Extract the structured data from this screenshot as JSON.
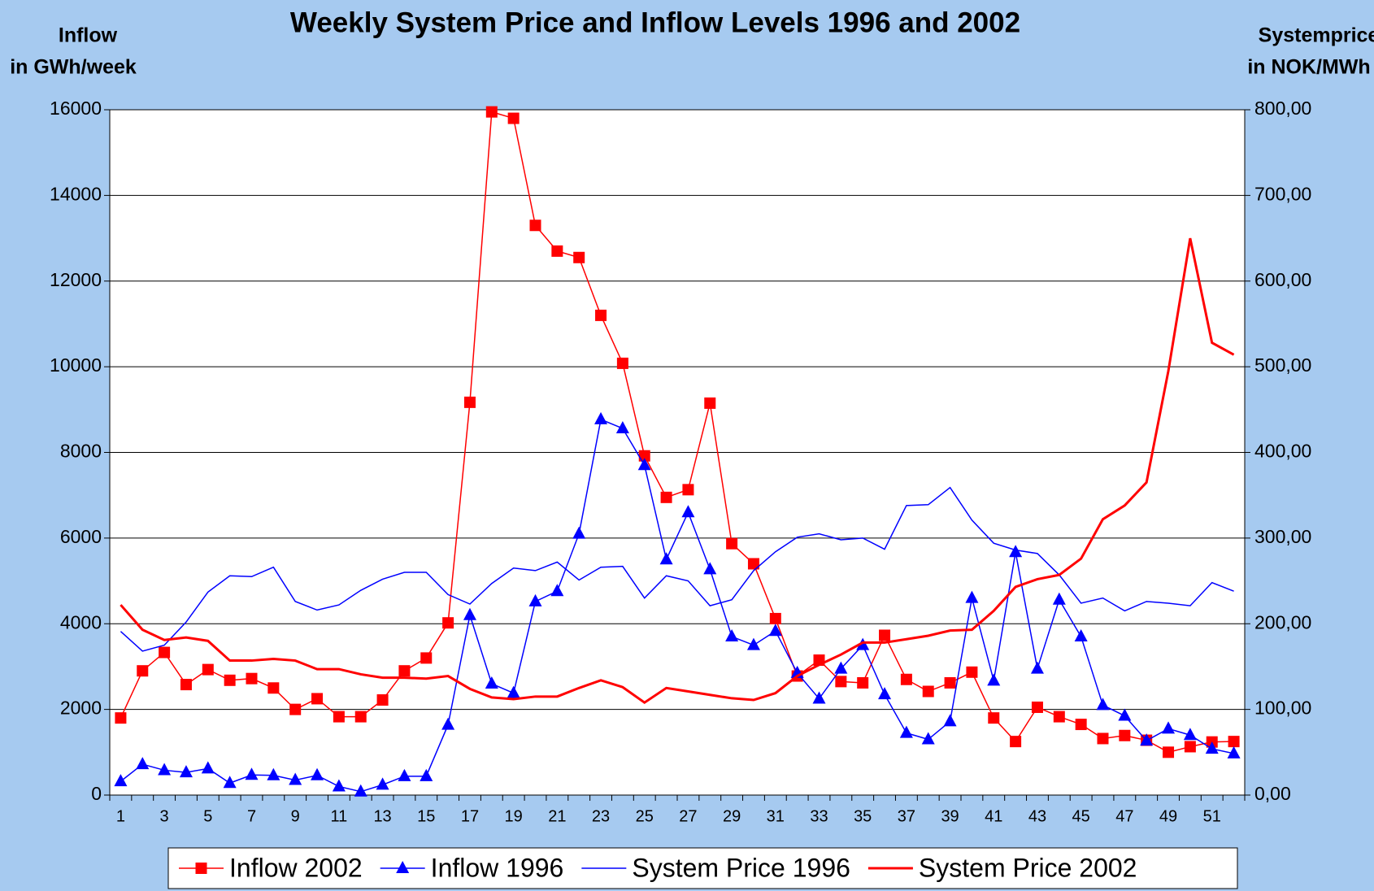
{
  "chart_data": {
    "type": "line",
    "title": "Weekly System Price and Inflow Levels 1996 and 2002",
    "ylabel": [
      "Inflow",
      "in GWh/week"
    ],
    "y2label": [
      "Systemprice",
      "in NOK/MWh"
    ],
    "categories": [
      1,
      null,
      3,
      null,
      5,
      null,
      7,
      null,
      9,
      null,
      11,
      null,
      13,
      null,
      15,
      null,
      17,
      null,
      19,
      null,
      21,
      null,
      23,
      null,
      25,
      null,
      27,
      null,
      29,
      null,
      31,
      null,
      33,
      null,
      35,
      null,
      37,
      null,
      39,
      null,
      41,
      null,
      43,
      null,
      45,
      null,
      47,
      null,
      49,
      null,
      51,
      null
    ],
    "ylim": [
      0,
      16000
    ],
    "yticks": [
      0,
      2000,
      4000,
      6000,
      8000,
      10000,
      12000,
      14000,
      16000
    ],
    "y2lim": [
      0,
      800
    ],
    "y2ticks": [
      {
        "value": 0,
        "label": "0,00"
      },
      {
        "value": 100,
        "label": "100,00"
      },
      {
        "value": 200,
        "label": "200,00"
      },
      {
        "value": 300,
        "label": "300,00"
      },
      {
        "value": 400,
        "label": "400,00"
      },
      {
        "value": 500,
        "label": "500,00"
      },
      {
        "value": 600,
        "label": "600,00"
      },
      {
        "value": 700,
        "label": "700,00"
      },
      {
        "value": 800,
        "label": "800,00"
      }
    ],
    "grid": true,
    "legend": "bottom",
    "series": [
      {
        "name": "Inflow 2002",
        "color": "#ff0000",
        "marker": "square",
        "line_width": 1.5,
        "values": [
          1800,
          2900,
          3330,
          2580,
          2930,
          2680,
          2720,
          2500,
          2000,
          2250,
          1830,
          1830,
          2220,
          2900,
          3200,
          4020,
          9170,
          15950,
          15800,
          13300,
          12700,
          12550,
          11200,
          10080,
          7920,
          6950,
          7130,
          9150,
          5870,
          5400,
          4120,
          2780,
          3150,
          2650,
          2620,
          3730,
          2700,
          2420,
          2620,
          2870,
          1800,
          1250,
          2050,
          1830,
          1650,
          1320,
          1390,
          1280,
          1000,
          1130,
          1240,
          1250
        ]
      },
      {
        "name": "Inflow 1996",
        "color": "#0000ff",
        "marker": "triangle",
        "line_width": 1.5,
        "values": [
          320,
          720,
          580,
          530,
          620,
          280,
          470,
          460,
          350,
          460,
          200,
          80,
          240,
          440,
          440,
          1640,
          4200,
          2600,
          2380,
          4520,
          4760,
          6100,
          8770,
          8560,
          7700,
          5500,
          6600,
          5270,
          3700,
          3500,
          3830,
          2850,
          2250,
          2950,
          3500,
          2350,
          1450,
          1300,
          1720,
          4600,
          2670,
          5670,
          2950,
          4560,
          3700,
          2100,
          1850,
          1270,
          1550,
          1400,
          1080,
          970
        ]
      },
      {
        "name": "System Price 1996",
        "color": "#0000ff",
        "marker": "none",
        "line_width": 1.5,
        "axis": "y2",
        "values": [
          191,
          168,
          175,
          202,
          237,
          256,
          255,
          266,
          226,
          216,
          222,
          239,
          252,
          260,
          260,
          234,
          223,
          247,
          265,
          262,
          272,
          251,
          266,
          267,
          230,
          256,
          250,
          221,
          228,
          262,
          284,
          301,
          305,
          298,
          300,
          287,
          338,
          339,
          359,
          321,
          294,
          286,
          282,
          257,
          224,
          230,
          215,
          226,
          224,
          221,
          248,
          238
        ]
      },
      {
        "name": "System Price 2002",
        "color": "#ff0000",
        "marker": "none",
        "line_width": 3,
        "axis": "y2",
        "values": [
          222,
          193,
          181,
          184,
          180,
          157,
          157,
          159,
          157,
          147,
          147,
          141,
          137,
          137,
          136,
          139,
          124,
          114,
          112,
          115,
          115,
          125,
          134,
          126,
          108,
          125,
          121,
          117,
          113,
          111,
          119,
          139,
          152,
          164,
          178,
          178,
          182,
          186,
          192,
          193,
          215,
          243,
          252,
          257,
          276,
          322,
          338,
          365,
          495,
          650,
          528,
          514
        ]
      }
    ]
  }
}
